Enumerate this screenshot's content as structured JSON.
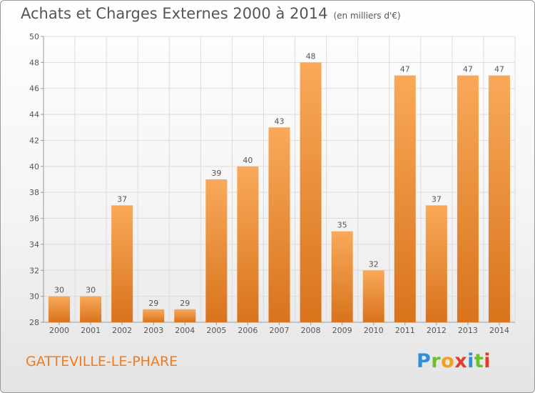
{
  "title": "Achats et Charges Externes 2000 à 2014",
  "units": "(en milliers d'€)",
  "city": "GATTEVILLE-LE-PHARE",
  "logo": [
    "P",
    "r",
    "o",
    "x",
    "i",
    "t",
    "i"
  ],
  "colors": {
    "bar_light": "#f8a959",
    "bar_dark": "#d9731c",
    "city": "#f07a1e",
    "grid": "#dcdcdc"
  },
  "chart_data": {
    "type": "bar",
    "categories": [
      "2000",
      "2001",
      "2002",
      "2003",
      "2004",
      "2005",
      "2006",
      "2007",
      "2008",
      "2009",
      "2010",
      "2011",
      "2012",
      "2013",
      "2014"
    ],
    "values": [
      30,
      30,
      37,
      29,
      29,
      39,
      40,
      43,
      48,
      35,
      32,
      47,
      37,
      47,
      47
    ],
    "ylim": [
      28,
      50
    ],
    "yticks": [
      28,
      30,
      32,
      34,
      36,
      38,
      40,
      42,
      44,
      46,
      48,
      50
    ],
    "grid": true,
    "data_labels": true
  }
}
